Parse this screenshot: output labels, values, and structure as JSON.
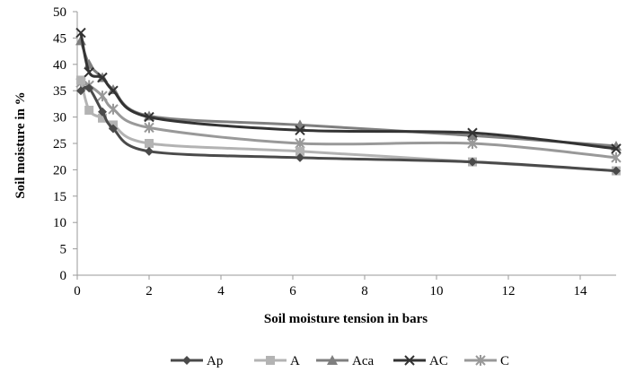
{
  "chart_data": {
    "type": "line",
    "xlabel": "Soil moisture tension in bars",
    "ylabel": "Soil moisture in %",
    "xlim": [
      0,
      15
    ],
    "ylim": [
      0,
      50
    ],
    "xticks": [
      0,
      2,
      4,
      6,
      8,
      10,
      12,
      14
    ],
    "yticks": [
      0,
      5,
      10,
      15,
      20,
      25,
      30,
      35,
      40,
      45,
      50
    ],
    "grid": false,
    "legend_position": "bottom",
    "x": [
      0.1,
      0.33,
      0.7,
      1,
      2,
      6.2,
      11,
      15
    ],
    "series": [
      {
        "name": "Ap",
        "color": "#4a4a4a",
        "marker": "diamond",
        "values": [
          35.0,
          35.5,
          31.0,
          27.8,
          23.5,
          22.3,
          21.5,
          19.8
        ]
      },
      {
        "name": "A",
        "color": "#b3b3b3",
        "marker": "square",
        "values": [
          37.0,
          31.3,
          29.8,
          28.5,
          25.0,
          23.5,
          21.5,
          19.8
        ]
      },
      {
        "name": "Aca",
        "color": "#7f7f7f",
        "marker": "triangle",
        "values": [
          44.5,
          40.0,
          37.5,
          35.2,
          30.2,
          28.5,
          26.5,
          24.5
        ]
      },
      {
        "name": "AC",
        "color": "#333333",
        "marker": "x",
        "values": [
          46.0,
          38.5,
          37.5,
          35.0,
          30.0,
          27.5,
          27.0,
          24.0
        ]
      },
      {
        "name": "C",
        "color": "#999999",
        "marker": "star",
        "values": [
          36.5,
          36.0,
          34.0,
          31.5,
          28.0,
          25.0,
          25.0,
          22.3
        ]
      }
    ]
  }
}
